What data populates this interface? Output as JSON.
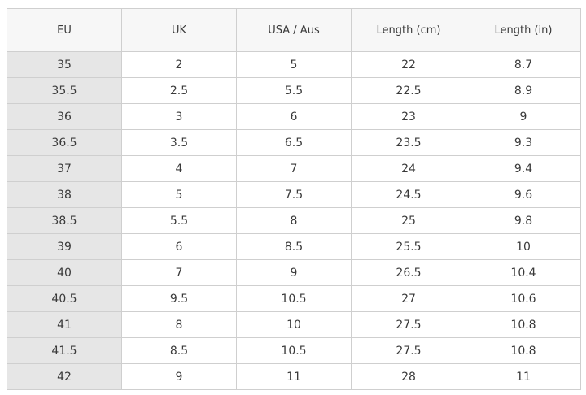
{
  "table": {
    "header": [
      "EU",
      "UK",
      "USA / Aus",
      "Length (cm)",
      "Length (in)"
    ],
    "rows": [
      [
        "35",
        "2",
        "5",
        "22",
        "8.7"
      ],
      [
        "35.5",
        "2.5",
        "5.5",
        "22.5",
        "8.9"
      ],
      [
        "36",
        "3",
        "6",
        "23",
        "9"
      ],
      [
        "36.5",
        "3.5",
        "6.5",
        "23.5",
        "9.3"
      ],
      [
        "37",
        "4",
        "7",
        "24",
        "9.4"
      ],
      [
        "38",
        "5",
        "7.5",
        "24.5",
        "9.6"
      ],
      [
        "38.5",
        "5.5",
        "8",
        "25",
        "9.8"
      ],
      [
        "39",
        "6",
        "8.5",
        "25.5",
        "10"
      ],
      [
        "40",
        "7",
        "9",
        "26.5",
        "10.4"
      ],
      [
        "40.5",
        "9.5",
        "10.5",
        "27",
        "10.6"
      ],
      [
        "41",
        "8",
        "10",
        "27.5",
        "10.8"
      ],
      [
        "41.5",
        "8.5",
        "10.5",
        "27.5",
        "10.8"
      ],
      [
        "42",
        "9",
        "11",
        "28",
        "11"
      ]
    ]
  }
}
